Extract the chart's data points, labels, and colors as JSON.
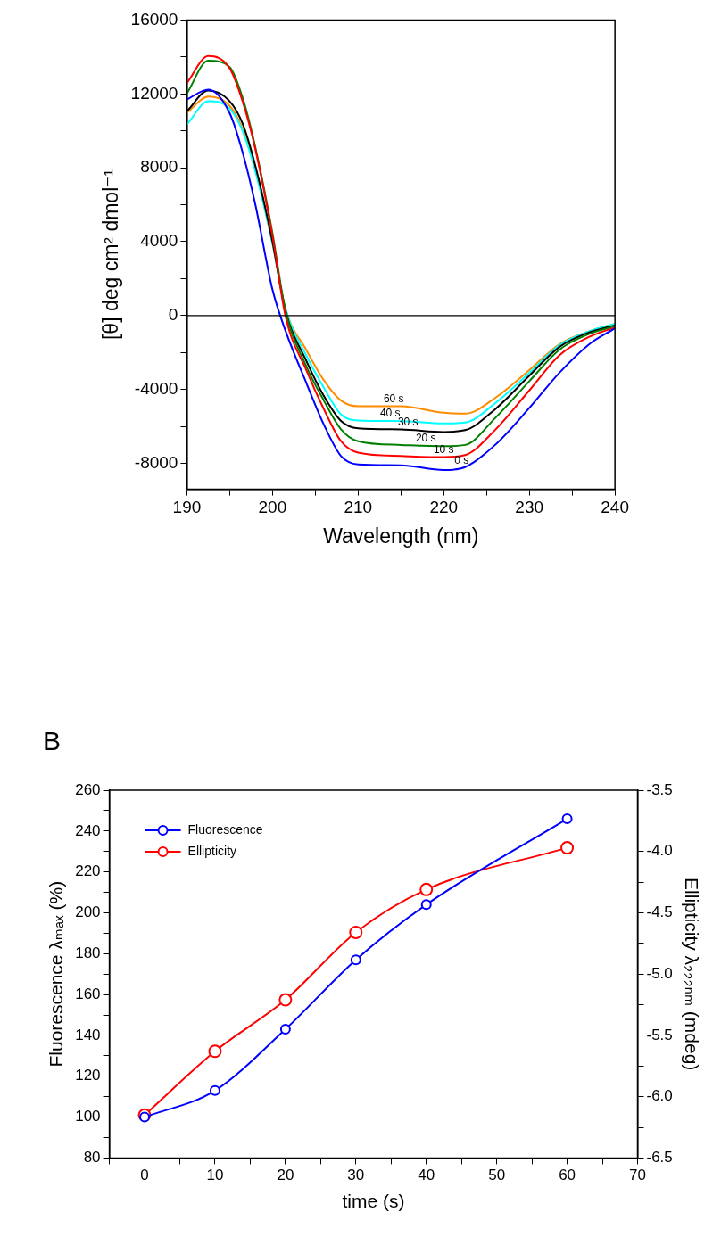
{
  "chart_data": [
    {
      "type": "line",
      "xlabel": "Wavelength (nm)",
      "ylabel": "[θ] deg cm² dmol⁻¹",
      "x": [
        190,
        192.5,
        195,
        196.5,
        198,
        200,
        201.5,
        204,
        206,
        208,
        210,
        215,
        220,
        222.5,
        226,
        230,
        233.5,
        237,
        240
      ],
      "series": [
        {
          "name": "0 s",
          "color": "#0000ff",
          "values": [
            11700,
            12230,
            10950,
            8850,
            6000,
            1400,
            -800,
            -3700,
            -5900,
            -7600,
            -8050,
            -8100,
            -8360,
            -8200,
            -7000,
            -5000,
            -3100,
            -1550,
            -690
          ]
        },
        {
          "name": "10 s",
          "color": "#ff0000",
          "values": [
            12580,
            14050,
            13380,
            11600,
            9000,
            4300,
            0,
            -3000,
            -5060,
            -6800,
            -7420,
            -7600,
            -7660,
            -7550,
            -6190,
            -4050,
            -2150,
            -1150,
            -640
          ]
        },
        {
          "name": "20 s",
          "color": "#008000",
          "values": [
            12020,
            13800,
            13450,
            11800,
            9100,
            4450,
            300,
            -2800,
            -4600,
            -6150,
            -6800,
            -7000,
            -7070,
            -7000,
            -5550,
            -3550,
            -1850,
            -990,
            -580
          ]
        },
        {
          "name": "30 s",
          "color": "#000000",
          "values": [
            11060,
            12180,
            11600,
            10400,
            8100,
            4000,
            300,
            -2500,
            -4350,
            -5700,
            -6100,
            -6160,
            -6300,
            -6200,
            -5070,
            -3250,
            -1700,
            -910,
            -530
          ]
        },
        {
          "name": "40 s",
          "color": "#00ffff",
          "values": [
            10340,
            11600,
            11200,
            10000,
            7800,
            3900,
            400,
            -2200,
            -3900,
            -5350,
            -5680,
            -5710,
            -5840,
            -5790,
            -4750,
            -3100,
            -1600,
            -850,
            -450
          ]
        },
        {
          "name": "60 s",
          "color": "#ff8c00",
          "values": [
            10980,
            11850,
            11350,
            10100,
            7950,
            3900,
            400,
            -1900,
            -3500,
            -4600,
            -4910,
            -4910,
            -5260,
            -5310,
            -4460,
            -2950,
            -1550,
            -850,
            -450
          ]
        }
      ],
      "xlim": [
        190,
        240
      ],
      "xticks": [
        190,
        {
          "value": 195,
          "label": null
        },
        200,
        {
          "value": 205,
          "label": null
        },
        210,
        {
          "value": 215,
          "label": null
        },
        220,
        {
          "value": 225,
          "label": null
        },
        230,
        {
          "value": 235,
          "label": null
        },
        240
      ],
      "ylim": [
        -9400,
        16000
      ],
      "yticks": [
        -8000,
        {
          "value": -6000,
          "label": null
        },
        -4000,
        {
          "value": -2000,
          "label": null
        },
        0,
        {
          "value": 2000,
          "label": null
        },
        4000,
        {
          "value": 6000,
          "label": null
        },
        8000,
        {
          "value": 10000,
          "label": null
        },
        12000,
        {
          "value": 14000,
          "label": null
        },
        16000
      ],
      "ref_lines": [
        {
          "axis": "y",
          "value": 0,
          "color": "#000000"
        }
      ],
      "grid": false,
      "legend": false,
      "marker": "none",
      "line_style": "solid"
    },
    {
      "type": "line",
      "title": "B",
      "xlabel": "time (s)",
      "ylabel": "Fluorescence λₘₐₓ (%)",
      "y2label": "Ellipticity λ₂₂₂ₙₘ (mdeg)",
      "x": [
        0,
        10,
        20,
        30,
        40,
        60
      ],
      "series": [
        {
          "name": "Fluorescence",
          "color": "#0000ff",
          "values": [
            100,
            113,
            143,
            177,
            204,
            246
          ]
        },
        {
          "name": "Ellipticity",
          "color": "#ff0000",
          "axis": "y2",
          "values": [
            -6.15,
            -5.63,
            -5.21,
            -4.66,
            -4.31,
            -3.97
          ]
        }
      ],
      "xlim": [
        -5,
        70
      ],
      "xticks": [
        {
          "value": -5,
          "label": null
        },
        0,
        {
          "value": 5,
          "label": null
        },
        10,
        {
          "value": 15,
          "label": null
        },
        20,
        {
          "value": 25,
          "label": null
        },
        30,
        {
          "value": 35,
          "label": null
        },
        40,
        {
          "value": 45,
          "label": null
        },
        50,
        {
          "value": 55,
          "label": null
        },
        60,
        {
          "value": 65,
          "label": null
        },
        70
      ],
      "ylim": [
        80,
        260
      ],
      "yticks": [
        80,
        {
          "value": 90,
          "label": null
        },
        100,
        {
          "value": 110,
          "label": null
        },
        120,
        {
          "value": 130,
          "label": null
        },
        140,
        {
          "value": 150,
          "label": null
        },
        160,
        {
          "value": 170,
          "label": null
        },
        180,
        {
          "value": 190,
          "label": null
        },
        200,
        {
          "value": 210,
          "label": null
        },
        220,
        {
          "value": 230,
          "label": null
        },
        240,
        {
          "value": 250,
          "label": null
        },
        260
      ],
      "y2lim": [
        -6.5,
        -3.5
      ],
      "y2ticks": [
        {
          "value": -6.5,
          "label": "-6.5"
        },
        {
          "value": -6.25,
          "label": null
        },
        {
          "value": -6,
          "label": "-6.0"
        },
        {
          "value": -5.75,
          "label": null
        },
        {
          "value": -5.5,
          "label": "-5.5"
        },
        {
          "value": -5.25,
          "label": null
        },
        {
          "value": -5,
          "label": "-5.0"
        },
        {
          "value": -4.75,
          "label": null
        },
        {
          "value": -4.5,
          "label": "-4.5"
        },
        {
          "value": -4.25,
          "label": null
        },
        {
          "value": -4,
          "label": "-4.0"
        },
        {
          "value": -3.75,
          "label": null
        },
        {
          "value": -3.5,
          "label": "-3.5"
        }
      ],
      "grid": false,
      "legend": "top left",
      "marker": "circle",
      "line_style": "solid"
    }
  ]
}
